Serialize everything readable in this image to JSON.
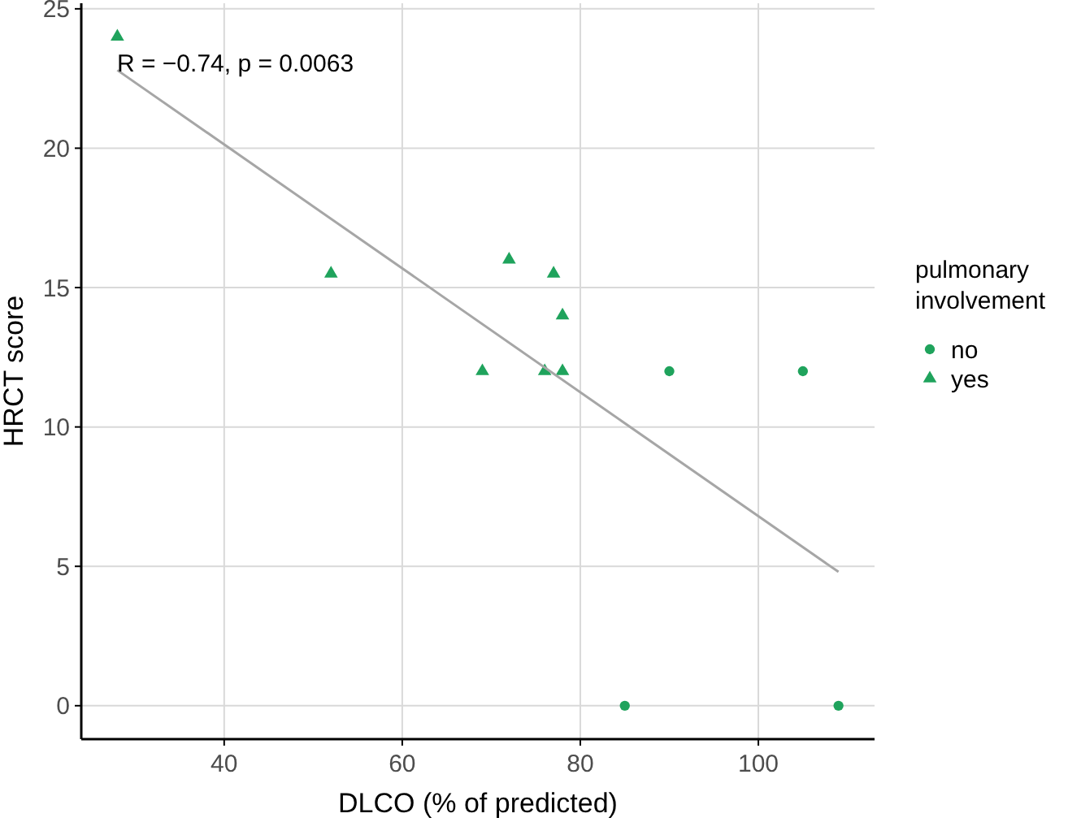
{
  "chart_data": {
    "type": "scatter",
    "xlabel": "DLCO (% of predicted)",
    "ylabel": "HRCT score",
    "legend_title": "pulmonary involvement",
    "annotations": [
      "R = −0.74, p = 0.0063"
    ],
    "xlim": [
      23.95,
      113.05
    ],
    "ylim": [
      -1.2,
      25.2
    ],
    "xticks": [
      40,
      60,
      80,
      100
    ],
    "yticks": [
      0,
      5,
      10,
      15,
      20,
      25
    ],
    "grid": true,
    "legend": "right",
    "series": [
      {
        "name": "no",
        "color": "#1fa35c",
        "marker": "circle",
        "x": [
          90,
          85,
          105,
          109
        ],
        "values": [
          12,
          0,
          12,
          0
        ]
      },
      {
        "name": "yes",
        "color": "#1fa35c",
        "marker": "triangle",
        "x": [
          28,
          52,
          72,
          77,
          78,
          69,
          76,
          78
        ],
        "values": [
          24,
          15.5,
          16,
          15.5,
          14,
          12,
          12,
          12
        ]
      },
      {
        "type": "line",
        "color": "#a6a6a6",
        "marker": "none",
        "x": [
          28,
          109
        ],
        "values": [
          22.8,
          4.8
        ]
      }
    ]
  }
}
